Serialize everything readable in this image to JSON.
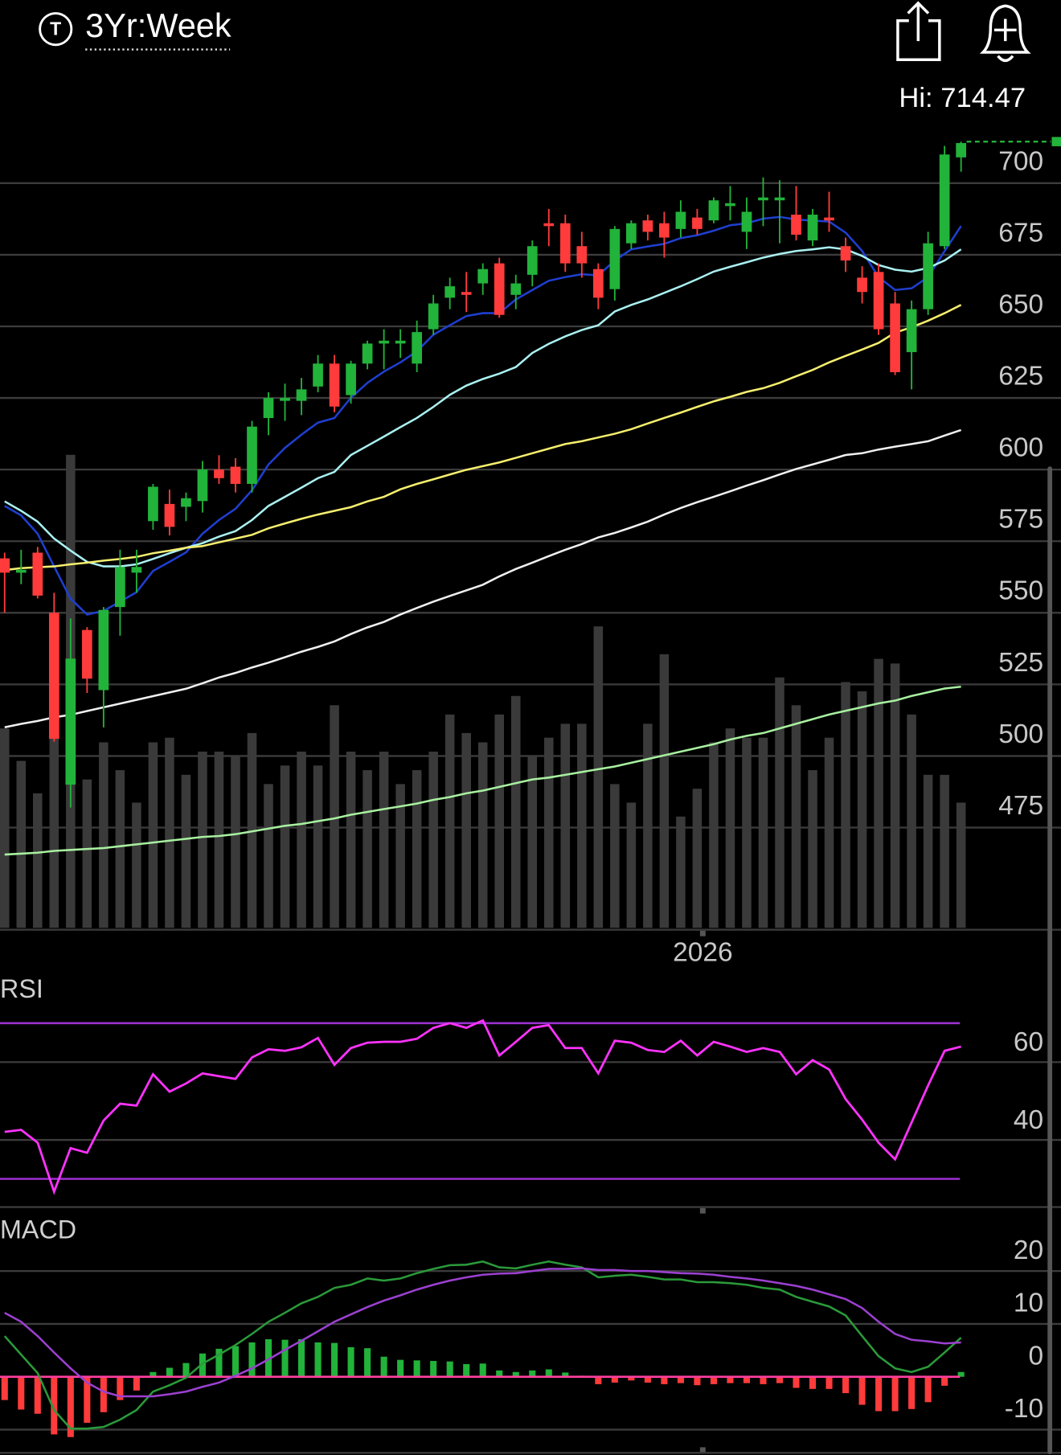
{
  "header": {
    "icon_letter": "T",
    "timeframe": "3Yr:Week",
    "hi_label": "Hi: 714.47"
  },
  "chart_data": [
    {
      "type": "candlestick",
      "categories": [
        null,
        null,
        null,
        null,
        null,
        null,
        null,
        null,
        null,
        null,
        null,
        null,
        null,
        null,
        null,
        null,
        null,
        null,
        null,
        null,
        null,
        null,
        null,
        null,
        null,
        null,
        null,
        null,
        null,
        null,
        null,
        null,
        null,
        null,
        null,
        null,
        null,
        null,
        null,
        null,
        null,
        null,
        "2026",
        null,
        null,
        null,
        null,
        null,
        null,
        null,
        null,
        null,
        null,
        null,
        null,
        null,
        null,
        null,
        null
      ],
      "open": [
        569,
        564,
        571,
        550,
        490,
        544,
        523,
        552,
        564,
        582,
        588,
        587,
        589,
        600,
        601,
        595,
        618,
        624,
        624,
        629,
        637,
        626,
        637,
        644,
        644,
        637,
        649,
        660,
        662,
        665,
        672,
        661,
        668,
        686,
        686,
        678,
        670,
        663,
        679,
        687,
        686,
        684,
        688,
        687,
        692,
        683,
        694,
        694,
        689,
        680,
        688,
        678,
        667,
        669,
        658,
        641,
        656,
        678,
        709
      ],
      "high": [
        571,
        572,
        573,
        557,
        548,
        545,
        552,
        572,
        572,
        595,
        593,
        592,
        603,
        605,
        604,
        617,
        627,
        630,
        632,
        640,
        640,
        638,
        645,
        649,
        649,
        652,
        661,
        667,
        669,
        672,
        674,
        668,
        680,
        691,
        689,
        683,
        672,
        685,
        687,
        689,
        690,
        694,
        691,
        695,
        699,
        695,
        702,
        701,
        699,
        691,
        697,
        681,
        671,
        672,
        662,
        659,
        683,
        713,
        714.5
      ],
      "low": [
        550,
        560,
        555,
        505,
        482,
        522,
        510,
        542,
        557,
        579,
        577,
        582,
        585,
        595,
        592,
        592,
        612,
        617,
        619,
        627,
        620,
        623,
        635,
        635,
        639,
        634,
        647,
        656,
        655,
        661,
        653,
        656,
        664,
        678,
        669,
        667,
        656,
        659,
        677,
        680,
        674,
        681,
        682,
        686,
        687,
        677,
        685,
        679,
        680,
        678,
        683,
        669,
        658,
        647,
        633,
        628,
        654,
        677,
        704
      ],
      "close": [
        564,
        565,
        556,
        506,
        534,
        527,
        551,
        566,
        566,
        594,
        580,
        590,
        600,
        597,
        595,
        615,
        625,
        625,
        628,
        637,
        622,
        637,
        644,
        645,
        645,
        648,
        658,
        664,
        661,
        670,
        654,
        665,
        678,
        685,
        672,
        672,
        660,
        684,
        686,
        683,
        681,
        690,
        684,
        694,
        693,
        690,
        695,
        695,
        682,
        689,
        687,
        673,
        662,
        649,
        634,
        656,
        679,
        710,
        714
      ],
      "up_color": "#22b33a",
      "down_color": "#ff3b3b",
      "ylim": [
        440,
        718.5
      ],
      "yticks": [
        475,
        500,
        525,
        550,
        575,
        600,
        625,
        650,
        675,
        700
      ],
      "grid": true,
      "series": [
        {
          "color": "#1f3fd0",
          "values": [
            587.3,
            584.0,
            577.6,
            566.2,
            554.9,
            549.4,
            550.7,
            553.9,
            557.2,
            564.6,
            567.8,
            571.1,
            577.6,
            582.4,
            586.3,
            592.8,
            601.8,
            607.6,
            612.2,
            616.4,
            618.0,
            625.1,
            630.3,
            634.2,
            637.4,
            641.3,
            647.1,
            650.4,
            653.6,
            654.6,
            654.6,
            659.4,
            662.7,
            665.9,
            667.2,
            668.2,
            667.8,
            673.0,
            676.9,
            677.9,
            678.8,
            680.8,
            681.8,
            683.4,
            685.3,
            686.0,
            687.6,
            688.2,
            687.3,
            686.9,
            686.6,
            682.7,
            676.3,
            667.2,
            662.7,
            663.3,
            667.2,
            676.3,
            685.0
          ]
        },
        {
          "color": "#aaf0f0",
          "values": [
            588.9,
            585.6,
            581.8,
            575.9,
            571.7,
            567.8,
            566.2,
            566.2,
            566.9,
            568.8,
            570.8,
            572.7,
            574.3,
            576.6,
            578.5,
            582.4,
            587.3,
            590.5,
            593.7,
            597.0,
            599.2,
            605.1,
            608.3,
            611.5,
            614.8,
            618.0,
            621.9,
            626.1,
            629.3,
            631.6,
            633.5,
            635.8,
            640.7,
            643.9,
            646.5,
            648.7,
            650.4,
            655.2,
            657.5,
            659.4,
            661.7,
            664.0,
            666.5,
            669.1,
            670.8,
            672.4,
            674.0,
            675.3,
            676.3,
            676.9,
            677.6,
            676.9,
            674.6,
            671.4,
            669.8,
            669.1,
            670.4,
            673.0,
            676.9
          ]
        },
        {
          "color": "#f5ef6e",
          "values": [
            564.9,
            565.6,
            565.9,
            566.2,
            566.9,
            567.5,
            568.2,
            568.8,
            569.5,
            570.8,
            571.7,
            572.7,
            573.3,
            574.6,
            575.9,
            577.2,
            579.5,
            581.2,
            582.8,
            584.3,
            585.6,
            586.9,
            588.9,
            590.5,
            593.1,
            595.0,
            596.6,
            598.3,
            599.9,
            601.2,
            602.5,
            604.1,
            605.7,
            607.3,
            608.9,
            609.9,
            611.2,
            612.5,
            614.1,
            616.1,
            618.0,
            619.9,
            621.9,
            623.8,
            625.4,
            627.1,
            628.4,
            630.3,
            632.6,
            634.8,
            637.4,
            639.7,
            641.9,
            644.2,
            647.8,
            649.7,
            652.0,
            654.6,
            657.5
          ]
        },
        {
          "color": "#f0f0f0",
          "values": [
            510.0,
            511.2,
            512.2,
            513.5,
            514.4,
            515.7,
            517.0,
            518.3,
            519.6,
            520.9,
            522.2,
            523.5,
            525.4,
            527.4,
            529.0,
            530.9,
            532.6,
            534.5,
            536.4,
            538.1,
            540.0,
            542.6,
            544.9,
            546.8,
            549.4,
            551.7,
            553.9,
            555.9,
            557.8,
            559.8,
            562.7,
            565.3,
            567.5,
            569.8,
            572.0,
            574.0,
            576.3,
            577.9,
            579.8,
            581.8,
            584.3,
            586.6,
            588.6,
            590.5,
            592.4,
            594.4,
            596.3,
            598.3,
            600.2,
            601.8,
            603.4,
            605.1,
            605.7,
            607.0,
            608.0,
            608.9,
            609.9,
            611.9,
            613.8
          ]
        }
      ],
      "volume": {
        "color": "#3a3a3a",
        "ylim": [
          0,
          110
        ],
        "values": [
          43,
          36,
          29,
          42,
          102,
          32,
          40,
          34,
          27,
          40,
          41,
          33,
          38,
          38,
          37,
          42,
          31,
          35,
          38,
          35,
          48,
          38,
          34,
          38,
          31,
          34,
          38,
          46,
          42,
          40,
          46,
          50,
          37,
          41,
          44,
          44,
          65,
          31,
          27,
          44,
          59,
          24,
          30,
          40,
          43,
          41,
          41,
          54,
          48,
          34,
          41,
          53,
          51,
          58,
          57,
          46,
          33,
          33,
          27
        ],
        "ma_color": "#a8f0a0",
        "ma": [
          15.8,
          16,
          16.2,
          16.6,
          16.8,
          17,
          17.2,
          17.6,
          18,
          18.4,
          18.8,
          19.2,
          19.6,
          19.8,
          20.2,
          20.8,
          21.4,
          22,
          22.4,
          23,
          23.6,
          24.4,
          25,
          25.6,
          26.2,
          26.8,
          27.6,
          28.2,
          29,
          29.6,
          30.4,
          31.2,
          32,
          32.4,
          33,
          33.6,
          34.2,
          34.8,
          35.6,
          36.4,
          37.2,
          38,
          38.8,
          39.6,
          40.6,
          41.4,
          42,
          43,
          44,
          45,
          46,
          46.8,
          47.6,
          48.4,
          49,
          50,
          50.8,
          51.6,
          52
        ]
      }
    },
    {
      "type": "line",
      "title": "RSI",
      "color": "#ff33ff",
      "values": [
        42.1,
        42.6,
        39.3,
        26.7,
        37.9,
        36.7,
        45.0,
        49.3,
        48.8,
        56.9,
        52.4,
        54.5,
        57.1,
        56.4,
        55.7,
        61.2,
        63.3,
        62.9,
        63.8,
        66.2,
        59.3,
        63.6,
        65.0,
        65.2,
        65.2,
        66.0,
        68.8,
        70.0,
        68.8,
        70.7,
        61.7,
        65.2,
        68.8,
        69.5,
        63.6,
        63.6,
        57.1,
        65.5,
        65.0,
        63.1,
        62.6,
        65.5,
        61.7,
        65.2,
        64.0,
        62.6,
        63.6,
        62.6,
        56.9,
        60.5,
        58.1,
        50.5,
        45.2,
        39.3,
        35.0,
        44.5,
        54.0,
        62.9,
        64.0
      ],
      "ylim": [
        23,
        74
      ],
      "yticks": [
        40,
        60
      ],
      "grid": true,
      "bands": [
        30,
        70
      ],
      "band_color": "#9b30d0"
    },
    {
      "type": "macd",
      "title": "MACD",
      "series": [
        {
          "color": "#2a9a3a",
          "values": [
            7.7,
            4.2,
            0.7,
            -6.3,
            -9.8,
            -9.8,
            -9.5,
            -8.1,
            -6.3,
            -2.8,
            -1.6,
            -0.2,
            2.5,
            4.2,
            6.0,
            8.1,
            10.4,
            12.1,
            13.9,
            15.1,
            16.8,
            17.4,
            18.6,
            18.2,
            18.6,
            19.6,
            20.4,
            21.1,
            21.2,
            21.8,
            20.7,
            20.5,
            21.2,
            21.8,
            21.2,
            20.7,
            18.8,
            19.1,
            19.3,
            18.9,
            18.4,
            18.4,
            17.9,
            17.9,
            17.7,
            17.4,
            16.8,
            16.5,
            15.1,
            14.2,
            13.3,
            11.6,
            7.7,
            3.9,
            1.6,
            0.9,
            1.9,
            4.6,
            7.4
          ]
        },
        {
          "color": "#9b40d0",
          "values": [
            12.1,
            10.4,
            7.7,
            4.6,
            1.6,
            -1.1,
            -2.8,
            -3.7,
            -3.7,
            -3.7,
            -3.3,
            -2.8,
            -1.9,
            -1.1,
            0.2,
            1.6,
            3.3,
            5.1,
            6.8,
            8.6,
            10.4,
            11.8,
            13.2,
            14.4,
            15.4,
            16.5,
            17.4,
            18.2,
            18.8,
            19.3,
            19.5,
            19.6,
            20.0,
            20.4,
            20.4,
            20.5,
            20.2,
            20.2,
            20.0,
            20.0,
            19.8,
            19.6,
            19.5,
            19.3,
            18.9,
            18.6,
            18.2,
            17.7,
            17.2,
            16.5,
            15.6,
            14.7,
            13.0,
            10.4,
            8.1,
            7.0,
            6.7,
            6.3,
            6.5
          ]
        }
      ],
      "histogram": [
        -4.4,
        -6.2,
        -7.0,
        -10.9,
        -11.4,
        -8.7,
        -6.7,
        -4.4,
        -2.6,
        0.9,
        1.7,
        2.6,
        4.4,
        5.3,
        5.8,
        6.5,
        7.1,
        7.0,
        7.1,
        6.5,
        6.4,
        5.6,
        5.4,
        3.8,
        3.2,
        3.1,
        3.0,
        2.9,
        2.4,
        2.5,
        1.2,
        0.9,
        1.2,
        1.4,
        0.8,
        0.2,
        -1.4,
        -1.1,
        -0.7,
        -1.1,
        -1.4,
        -1.2,
        -1.6,
        -1.4,
        -1.2,
        -1.2,
        -1.4,
        -1.2,
        -2.1,
        -2.3,
        -2.3,
        -3.1,
        -5.3,
        -6.5,
        -6.5,
        -6.1,
        -4.8,
        -1.7,
        0.9
      ],
      "up_color": "#22b33a",
      "down_color": "#ff3b3b",
      "zero_color": "#ff3fa0",
      "ylim": [
        -14,
        25
      ],
      "yticks": [
        -10,
        0,
        10,
        20
      ],
      "grid": true
    }
  ]
}
